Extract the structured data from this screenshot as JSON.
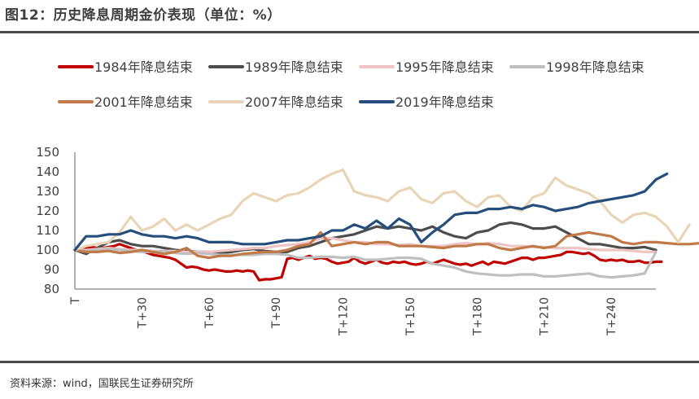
{
  "header": {
    "title": "图12：历史降息周期金价表现（单位：%）"
  },
  "footer": {
    "source": "资料来源：wind，国联民生证券研究所"
  },
  "chart_data": {
    "type": "line",
    "title": "历史降息周期金价表现（单位：%）",
    "xlabel": "",
    "ylabel": "",
    "ylim": [
      80,
      150
    ],
    "yticks": [
      80,
      90,
      100,
      110,
      120,
      130,
      140,
      150
    ],
    "xlim": [
      0,
      260
    ],
    "xticks": [
      {
        "value": 0,
        "label": "T"
      },
      {
        "value": 30,
        "label": "T+30"
      },
      {
        "value": 60,
        "label": "T+60"
      },
      {
        "value": 90,
        "label": "T+90"
      },
      {
        "value": 120,
        "label": "T+120"
      },
      {
        "value": 150,
        "label": "T+150"
      },
      {
        "value": 180,
        "label": "T+180"
      },
      {
        "value": 210,
        "label": "T+210"
      },
      {
        "value": 240,
        "label": "T+240"
      }
    ],
    "grid": false,
    "legend_position": "top",
    "x_step": 5,
    "series": [
      {
        "name": "1984年降息结束",
        "color": "#C00000",
        "values": [
          100,
          100.5,
          101,
          101.5,
          101,
          101,
          101.5,
          102,
          103,
          102,
          101,
          100,
          99.5,
          98.5,
          97.5,
          97,
          96.5,
          96,
          95,
          93,
          91,
          91.5,
          91,
          90,
          89.5,
          90,
          89.5,
          89,
          89,
          89.5,
          89,
          89.5,
          89,
          84.5,
          85,
          85,
          85.5,
          86,
          95.5,
          96,
          95,
          96,
          97,
          95.5,
          96,
          95.5,
          94,
          93,
          93.5,
          94,
          96,
          94,
          93,
          94,
          95,
          93.5,
          93,
          94,
          93.5,
          94,
          93,
          92.5,
          93,
          94,
          93,
          94,
          95,
          94,
          93,
          92.5,
          93,
          92,
          93,
          94,
          92.5,
          94,
          93.5,
          93,
          94,
          95,
          96,
          96,
          95,
          96,
          96,
          96.5,
          97,
          97.5,
          99,
          99,
          98.5,
          98,
          98.5,
          97,
          95,
          94.5,
          95,
          94.5,
          95,
          94,
          94,
          94.5,
          93.5,
          93.5,
          94,
          94
        ],
        "every": 2.5
      },
      {
        "name": "1989年降息结束",
        "color": "#4D4D4D",
        "values": [
          100,
          98,
          101,
          104,
          105,
          103,
          102,
          102,
          101,
          100,
          99.5,
          99,
          99,
          98.5,
          99,
          100,
          100.5,
          99.5,
          99,
          99,
          101,
          102,
          104,
          106,
          107,
          108,
          110,
          112,
          111,
          112,
          111,
          110,
          112,
          109,
          107,
          106,
          109,
          110,
          113,
          114,
          113,
          111,
          111,
          112,
          109,
          106,
          103,
          103,
          102,
          101,
          101,
          101.5,
          100
        ]
      },
      {
        "name": "1995年降息结束",
        "color": "#F0C4C4",
        "values": [
          100,
          100,
          100.5,
          101,
          100.5,
          100,
          100,
          99.5,
          99.5,
          99.5,
          99,
          99,
          99,
          99.5,
          100,
          100.5,
          101,
          101,
          102,
          102.5,
          103,
          104,
          106,
          106,
          105,
          104,
          104,
          103,
          103,
          102.5,
          103,
          102,
          102,
          102,
          103,
          103.5,
          103,
          103.5,
          103,
          102,
          102,
          101.5,
          101.5,
          101,
          101,
          101,
          100.5,
          100,
          100,
          100,
          99.5,
          99,
          99
        ]
      },
      {
        "name": "1998年降息结束",
        "color": "#BFBFBF",
        "values": [
          100,
          99.5,
          100,
          100.5,
          100,
          99.5,
          99,
          99,
          99.5,
          98.5,
          98,
          98.5,
          98,
          97.5,
          97.5,
          97.5,
          97.5,
          98,
          98,
          97.5,
          96,
          96,
          96.5,
          96.5,
          96,
          96.5,
          95,
          95,
          95.5,
          96,
          96,
          95.5,
          93,
          92,
          91,
          89,
          88,
          87.5,
          87,
          87,
          87.5,
          87.5,
          86.5,
          86.5,
          87,
          87.5,
          88,
          86.5,
          86,
          86.5,
          87,
          88,
          99
        ]
      },
      {
        "name": "2001年降息结束",
        "color": "#C07A48",
        "values": [
          100,
          99,
          99,
          99.5,
          98.5,
          99,
          100,
          99,
          98,
          99,
          101,
          97,
          96,
          97,
          97,
          98,
          98.5,
          99,
          99,
          100,
          102,
          103,
          109,
          102,
          103,
          104,
          103,
          104,
          104,
          102,
          102,
          102,
          101.5,
          101,
          102,
          102,
          103,
          103,
          101,
          100,
          101,
          102,
          101,
          102,
          107,
          108,
          109,
          108,
          107,
          104,
          103,
          104,
          104,
          103.5,
          103,
          103,
          103.5,
          103.5,
          102.5,
          103,
          102,
          103,
          104,
          104,
          103.5,
          104,
          104,
          103,
          104
        ]
      },
      {
        "name": "2007年降息结束",
        "color": "#E8D5B5",
        "values": [
          100,
          102,
          103,
          104,
          109,
          117,
          110,
          112,
          116,
          110,
          113,
          110,
          113,
          116,
          118,
          125,
          129,
          127,
          125,
          128,
          129,
          132,
          136,
          139,
          141,
          130,
          128,
          127,
          125,
          130,
          132,
          126,
          124,
          129,
          130,
          125,
          122,
          127,
          128,
          122,
          120,
          127,
          129,
          137,
          133,
          131,
          129,
          125,
          118,
          114,
          118,
          119,
          117,
          112,
          104,
          113
        ]
      },
      {
        "name": "2019年降息结束",
        "color": "#264E7C",
        "values": [
          100,
          107,
          107,
          108,
          108,
          110,
          108,
          107,
          107,
          106,
          107,
          106,
          104,
          104,
          104,
          103,
          103,
          103,
          104,
          105,
          105,
          106,
          107,
          110,
          110,
          113,
          111,
          115,
          111,
          116,
          113,
          104,
          109,
          113,
          118,
          119,
          119,
          121,
          121,
          122,
          121,
          123,
          122,
          120,
          121,
          122,
          124,
          125,
          126,
          127,
          128,
          130,
          136,
          139
        ]
      }
    ]
  }
}
